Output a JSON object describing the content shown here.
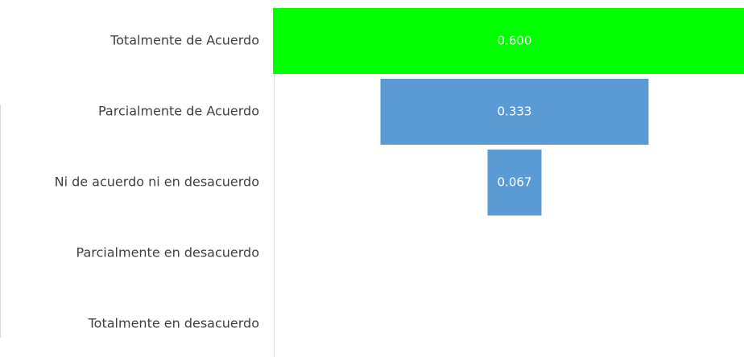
{
  "chart_data": {
    "type": "funnel",
    "categories": [
      "Totalmente de Acuerdo",
      "Parcialmente de Acuerdo",
      "Ni de acuerdo ni en desacuerdo",
      "Parcialmente en desacuerdo",
      "Totalmente en desacuerdo"
    ],
    "values": [
      0.6,
      0.333,
      0.067,
      0,
      0
    ],
    "value_labels": [
      "0.600",
      "0.333",
      "0.067",
      null,
      null
    ],
    "colors": [
      "#00ff00",
      "#5b9bd5",
      "#5b9bd5",
      "#5b9bd5",
      "#5b9bd5"
    ]
  }
}
